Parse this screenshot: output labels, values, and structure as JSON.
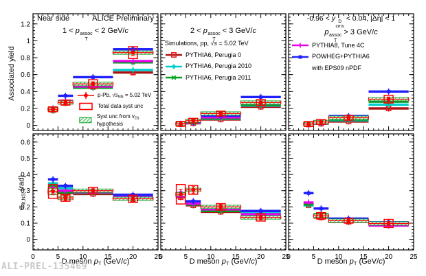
{
  "watermark": "ALI-PREL-135469",
  "titles": {
    "near_side": "Near side",
    "alice": "ALICE Preliminary",
    "panel_tl_rich": [
      {
        "t": "1 < "
      },
      {
        "t": "p",
        "s": "i"
      },
      {
        "sup": "assoc",
        "sub": "T"
      },
      {
        "t": " < 2 GeV/"
      },
      {
        "t": "c",
        "s": "i"
      }
    ],
    "panel_tm_rich": [
      {
        "t": "2 < "
      },
      {
        "t": "p",
        "s": "i"
      },
      {
        "sup": "assoc",
        "sub": "T"
      },
      {
        "t": " < 3 GeV/"
      },
      {
        "t": "c",
        "s": "i"
      }
    ],
    "panel_tr1_rich": [
      {
        "t": "-0.96 < "
      },
      {
        "t": "y",
        "s": "i"
      },
      {
        "sup": "D",
        "sub": "cms"
      },
      {
        "t": " < 0.04, |Δη| < 1"
      }
    ],
    "panel_tr2_rich": [
      {
        "t": "p",
        "s": "i"
      },
      {
        "sup": "assoc",
        "sub": "T"
      },
      {
        "t": " > 3 GeV/"
      },
      {
        "t": "c",
        "s": "i"
      }
    ]
  },
  "axes": {
    "xlabel_rich": [
      {
        "t": "D meson "
      },
      {
        "t": "p",
        "s": "i"
      },
      {
        "sub": "T"
      },
      {
        "t": " (GeV/"
      },
      {
        "t": "c",
        "s": "i"
      },
      {
        "t": ")"
      }
    ],
    "ylabel_top_rich": [
      {
        "t": "Associated yield"
      }
    ],
    "ylabel_bottom_rich": [
      {
        "t": "σ"
      },
      {
        "sub": "fit,NS"
      },
      {
        "t": " (rad)"
      }
    ]
  },
  "style": {
    "frame_color": "#000000",
    "data_color": "#ff0000",
    "v2_hatch_color": "#00a020",
    "watermark_color": "#c8c8c8"
  },
  "models": [
    {
      "key": "perugia0",
      "label": "PYTHIA6, Perugia 0",
      "color": "#aa1111",
      "marker_color": "#ee1111",
      "marker": "open-square"
    },
    {
      "key": "perugia2010",
      "label": "PYTHIA6, Perugia 2010",
      "color": "#00cdcd",
      "marker": "diamond"
    },
    {
      "key": "perugia2011",
      "label": "PYTHIA6, Perugia 2011",
      "color": "#00a020",
      "marker": "cross"
    },
    {
      "key": "pythia8",
      "label": "PYTHIA8, Tune 4C",
      "color": "#e800e8",
      "marker": "plus"
    },
    {
      "key": "powheg",
      "label": "POWHEG+PYTHIA6",
      "color": "#2020ff",
      "marker": "square"
    }
  ],
  "legends": {
    "data_legend": {
      "entries": [
        {
          "icon": "data-marker",
          "rich": [
            {
              "t": "p-Pb, √"
            },
            {
              "t": "s",
              "s": "i"
            },
            {
              "sub": "NN"
            },
            {
              "t": " = 5.02 TeV"
            }
          ]
        },
        {
          "icon": "syst-box",
          "label": "Total data syst unc"
        },
        {
          "icon": "v2-box",
          "rich": [
            {
              "t": "Syst unc from v"
            },
            {
              "sub": "2Δ"
            },
            {
              "t": " hypothesis"
            }
          ]
        }
      ]
    },
    "sim_legend": {
      "header_rich": [
        {
          "t": "Simulations, pp, √"
        },
        {
          "t": "s",
          "s": "i"
        },
        {
          "t": " = 5.02 TeV"
        }
      ],
      "entries": [
        {
          "icon": "model:perugia0",
          "label": "PYTHIA6, Perugia 0"
        },
        {
          "icon": "model:perugia2010",
          "label": "PYTHIA6, Perugia 2010"
        },
        {
          "icon": "model:perugia2011",
          "label": "PYTHIA6, Perugia 2011"
        }
      ]
    },
    "gen_legend": {
      "entries": [
        {
          "icon": "model:pythia8",
          "label": "PYTHIA8, Tune 4C"
        },
        {
          "icon": "model:powheg",
          "label": "POWHEG+PYTHIA6"
        },
        {
          "icon": "none",
          "label": "with EPS09 nPDF"
        }
      ]
    }
  },
  "chart_data": {
    "type": "scatter",
    "layout": "2 rows x 3 columns, shared axes",
    "title": "ALICE Preliminary, Near side, D meson - charged particle correlations, p-Pb 5.02 TeV vs simulations",
    "x": {
      "label": "D meson pT (GeV/c)",
      "range": [
        0,
        25
      ],
      "tick_vals": [
        0,
        5,
        10,
        15,
        20,
        25
      ],
      "tick_labels": [
        "0",
        "5",
        "10",
        "15",
        "20",
        "25"
      ],
      "minor_step": 1,
      "bin_edges": [
        [
          3,
          5
        ],
        [
          5,
          8
        ],
        [
          8,
          16
        ],
        [
          16,
          24
        ]
      ],
      "bin_centers": [
        4,
        6.5,
        12,
        20
      ]
    },
    "rows": [
      {
        "ylabel": "Associated yield",
        "ylim": [
          -0.06,
          1.32
        ],
        "ytick_vals": [
          0,
          0.2,
          0.4,
          0.6,
          0.8,
          1.0,
          1.2
        ],
        "ytick_labels": [
          "0",
          "0.2",
          "0.4",
          "0.6",
          "0.8",
          "1",
          "1.2"
        ],
        "minor_step": 0.04
      },
      {
        "ylabel": "sigma_fit,NS (rad)",
        "ylim": [
          -0.065,
          0.65
        ],
        "ytick_vals": [
          0,
          0.1,
          0.2,
          0.3,
          0.4,
          0.5,
          0.6
        ],
        "ytick_labels": [
          "0",
          "0.1",
          "0.2",
          "0.3",
          "0.4",
          "0.5",
          "0.6"
        ],
        "minor_step": 0.02
      },
      {
        "note": "grid off, black frames with inward ticks on all sides"
      }
    ],
    "panels": [
      {
        "id": "yield-assoc-1-2",
        "row": 0,
        "col": 0,
        "condition": "1 < pT_assoc < 2 GeV/c",
        "series": {
          "data": {
            "y": [
              0.19,
              0.27,
              0.49,
              0.86
            ],
            "stat": [
              0.02,
              0.02,
              0.025,
              0.035
            ],
            "syst": [
              0.028,
              0.03,
              0.05,
              0.07
            ],
            "v2_syst": [
              0.018,
              0.014,
              0.022,
              0.014
            ]
          },
          "powheg": [
            0.2,
            0.35,
            0.57,
            0.9
          ],
          "pythia8": [
            0.19,
            0.29,
            0.46,
            0.76
          ],
          "perugia2011": [
            0.175,
            0.275,
            0.445,
            0.745
          ],
          "perugia2010": [
            0.18,
            0.285,
            0.45,
            0.655
          ],
          "perugia0": [
            0.18,
            0.265,
            0.455,
            0.625
          ]
        }
      },
      {
        "id": "yield-assoc-2-3",
        "row": 0,
        "col": 1,
        "condition": "2 < pT_assoc < 3 GeV/c",
        "series": {
          "data": {
            "y": [
              0.018,
              0.055,
              0.14,
              0.27
            ],
            "stat": [
              0.007,
              0.01,
              0.014,
              0.02
            ],
            "syst": [
              0.01,
              0.014,
              0.022,
              0.035
            ],
            "v2_syst": [
              0.006,
              0.008,
              0.012,
              0.012
            ]
          },
          "powheg": [
            0.02,
            0.04,
            0.115,
            0.335
          ],
          "pythia8": [
            0.016,
            0.032,
            0.095,
            0.26
          ],
          "perugia2011": [
            0.014,
            0.028,
            0.085,
            0.245
          ],
          "perugia2010": [
            0.014,
            0.028,
            0.08,
            0.235
          ],
          "perugia0": [
            0.013,
            0.025,
            0.07,
            0.22
          ]
        }
      },
      {
        "id": "yield-assoc-gt3",
        "row": 0,
        "col": 2,
        "condition": "pT_assoc > 3 GeV/c",
        "series": {
          "data": {
            "y": [
              0.016,
              0.04,
              0.09,
              0.31
            ],
            "stat": [
              0.006,
              0.008,
              0.012,
              0.025
            ],
            "syst": [
              0.008,
              0.012,
              0.018,
              0.045
            ],
            "v2_syst": [
              0.004,
              0.005,
              0.008,
              0.01
            ]
          },
          "powheg": [
            0.015,
            0.032,
            0.11,
            0.4
          ],
          "pythia8": [
            0.012,
            0.026,
            0.08,
            0.3
          ],
          "perugia2011": [
            0.012,
            0.026,
            0.07,
            0.28
          ],
          "perugia2010": [
            0.012,
            0.023,
            0.06,
            0.245
          ],
          "perugia0": [
            0.01,
            0.02,
            0.046,
            0.2
          ]
        }
      },
      {
        "id": "sigma-assoc-1-2",
        "row": 1,
        "col": 0,
        "condition": "1 < pT_assoc < 2 GeV/c",
        "series": {
          "data": {
            "y": [
              0.295,
              0.255,
              0.3,
              0.25
            ],
            "stat": [
              0.02,
              0.015,
              0.012,
              0.015
            ],
            "syst": [
              0.042,
              0.02,
              0.02,
              0.022
            ],
            "v2_syst": [
              0.02,
              0.008,
              0.008,
              0.008
            ]
          },
          "powheg": [
            0.37,
            0.33,
            0.3,
            0.275
          ],
          "pythia8": [
            0.315,
            0.3,
            0.29,
            0.26
          ],
          "perugia2011": [
            0.33,
            0.29,
            0.285,
            0.25
          ],
          "perugia2010": [
            0.345,
            0.315,
            0.295,
            0.265
          ],
          "perugia0": [
            0.3,
            0.285,
            0.28,
            0.245
          ]
        }
      },
      {
        "id": "sigma-assoc-2-3",
        "row": 1,
        "col": 1,
        "condition": "2 < pT_assoc < 3 GeV/c",
        "series": {
          "data": {
            "y": [
              0.278,
              0.305,
              0.2,
              0.135
            ],
            "stat": [
              0.03,
              0.02,
              0.014,
              0.014
            ],
            "syst": [
              0.06,
              0.027,
              0.02,
              0.022
            ],
            "v2_syst": [
              0.01,
              0.008,
              0.008,
              0.008
            ]
          },
          "powheg": [
            0.285,
            0.235,
            0.195,
            0.175
          ],
          "pythia8": [
            0.265,
            0.22,
            0.185,
            0.155
          ],
          "perugia2011": [
            0.27,
            0.215,
            0.175,
            0.152
          ],
          "perugia2010": [
            0.275,
            0.225,
            0.18,
            0.165
          ],
          "perugia0": [
            0.26,
            0.21,
            0.17,
            0.145
          ]
        }
      },
      {
        "id": "sigma-assoc-gt3",
        "row": 1,
        "col": 2,
        "condition": "pT_assoc > 3 GeV/c",
        "series": {
          "data": {
            "y": [
              null,
              0.145,
              0.115,
              0.098
            ],
            "stat": [
              null,
              0.012,
              0.01,
              0.012
            ],
            "syst": [
              null,
              0.02,
              0.012,
              0.025
            ],
            "v2_syst": [
              null,
              0.006,
              0.005,
              0.006
            ]
          },
          "powheg": [
            0.285,
            0.19,
            0.128,
            0.105
          ],
          "pythia8": [
            0.227,
            0.15,
            0.112,
            0.085
          ],
          "perugia2011": [
            0.215,
            0.155,
            0.118,
            0.1
          ],
          "perugia2010": [
            0.21,
            0.14,
            0.113,
            0.095
          ],
          "perugia0": [
            0.21,
            0.135,
            0.108,
            0.09
          ]
        }
      }
    ]
  }
}
